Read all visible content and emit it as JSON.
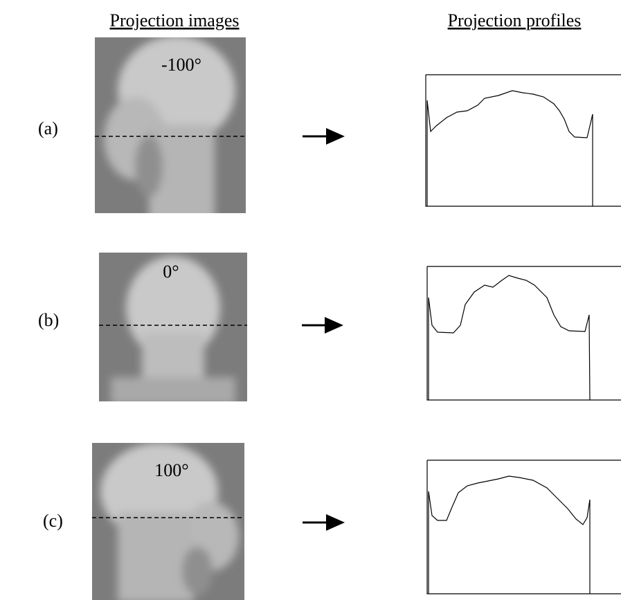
{
  "header": {
    "left": "Projection images",
    "right": "Projection profiles"
  },
  "panels": [
    {
      "label": "(a)",
      "angle": "-100°"
    },
    {
      "label": "(b)",
      "angle": "0°"
    },
    {
      "label": "(c)",
      "angle": "100°"
    }
  ]
}
